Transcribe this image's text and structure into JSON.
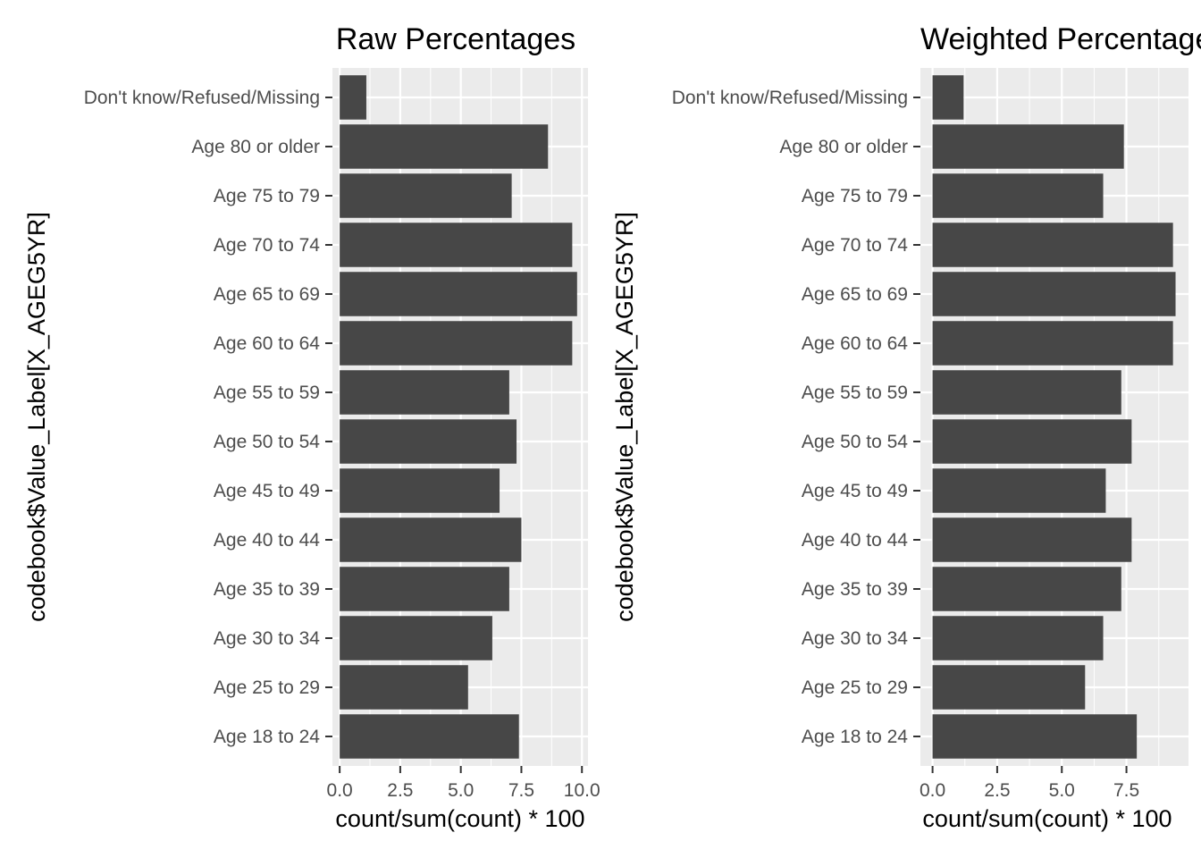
{
  "chart_data": [
    {
      "type": "bar",
      "orientation": "horizontal",
      "title": "Raw Percentages",
      "xlabel": "count/sum(count) * 100",
      "ylabel": "codebook$Value_Label[X_AGEG5YR]",
      "categories": [
        "Age 18 to 24",
        "Age 25 to 29",
        "Age 30 to 34",
        "Age 35 to 39",
        "Age 40 to 44",
        "Age 45 to 49",
        "Age 50 to 54",
        "Age 55 to 59",
        "Age 60 to 64",
        "Age 65 to 69",
        "Age 70 to 74",
        "Age 75 to 79",
        "Age 80 or older",
        "Don't know/Refused/Missing"
      ],
      "values": [
        7.4,
        5.3,
        6.3,
        7.0,
        7.5,
        6.6,
        7.3,
        7.0,
        9.6,
        9.8,
        9.6,
        7.1,
        8.6,
        1.1
      ],
      "xlim": [
        -0.3,
        10.25
      ],
      "xticks": [
        0,
        2.5,
        5,
        7.5,
        10
      ],
      "xtick_labels": [
        "0.0",
        "2.5",
        "5.0",
        "7.5",
        "10.0"
      ],
      "grid": true
    },
    {
      "type": "bar",
      "orientation": "horizontal",
      "title": "Weighted Percentages",
      "xlabel": "count/sum(count) * 100",
      "ylabel": "codebook$Value_Label[X_AGEG5YR]",
      "categories": [
        "Age 18 to 24",
        "Age 25 to 29",
        "Age 30 to 34",
        "Age 35 to 39",
        "Age 40 to 44",
        "Age 45 to 49",
        "Age 50 to 54",
        "Age 55 to 59",
        "Age 60 to 64",
        "Age 65 to 69",
        "Age 70 to 74",
        "Age 75 to 79",
        "Age 80 or older",
        "Don't know/Refused/Missing"
      ],
      "values": [
        7.9,
        5.9,
        6.6,
        7.3,
        7.7,
        6.7,
        7.7,
        7.3,
        9.3,
        9.4,
        9.3,
        6.6,
        7.4,
        1.2
      ],
      "xlim": [
        -0.47,
        9.9
      ],
      "xticks": [
        0,
        2.5,
        5,
        7.5
      ],
      "xtick_labels": [
        "0.0",
        "2.5",
        "5.0",
        "7.5"
      ],
      "grid": true
    }
  ]
}
